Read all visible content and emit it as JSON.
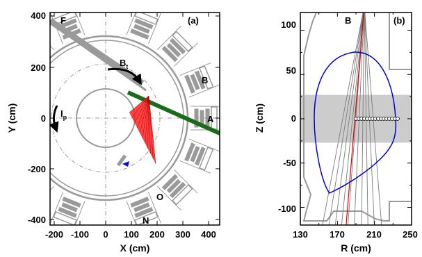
{
  "panel_a": {
    "label": "(a)",
    "xlabel": "X (cm)",
    "ylabel": "Y (cm)",
    "xticks": [
      "-200",
      "-100",
      "0",
      "100",
      "200",
      "300",
      "400"
    ],
    "yticks": [
      "400",
      "200",
      "0",
      "-200",
      "-400"
    ],
    "port_labels": {
      "F": "F",
      "B": "B",
      "A": "A",
      "O": "O",
      "N": "N"
    },
    "bt_label": "B",
    "bt_sub": "t",
    "ip_label": "I",
    "ip_sub": "p",
    "colors": {
      "beam": "#1a6b1a",
      "fan": "#e00000",
      "marker": "#0000ff",
      "structure": "#9a9a9a"
    }
  },
  "panel_b": {
    "label": "(b)",
    "port_label": "B",
    "xlabel": "R (cm)",
    "ylabel": "Z (cm)",
    "xticks": [
      "130",
      "170",
      "210",
      "250"
    ],
    "yticks": [
      "100",
      "50",
      "0",
      "-50",
      "-100"
    ],
    "xlim": [
      130,
      250
    ],
    "ylim": [
      -120,
      120
    ],
    "band_z": [
      -27,
      27
    ],
    "circle_r": [
      190,
      193,
      196,
      199,
      202,
      205,
      208,
      211,
      214,
      217,
      220,
      223,
      226,
      229,
      232,
      235
    ],
    "colors": {
      "plasma": "#0000cc",
      "band": "#cccccc",
      "sightline": "#7a7a7a",
      "highlight": "#e00000"
    }
  }
}
